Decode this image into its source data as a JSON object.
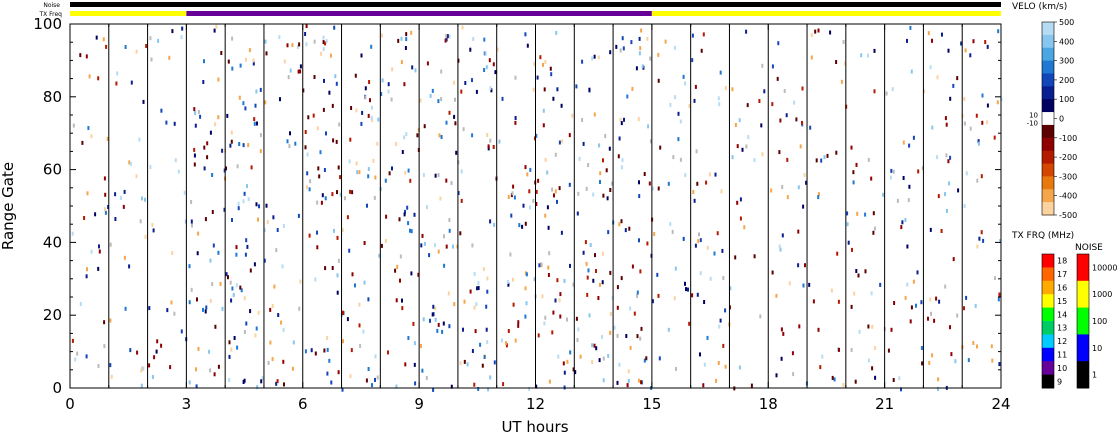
{
  "chart_data": {
    "type": "heatmap",
    "title": "",
    "xlabel": "UT hours",
    "ylabel": "Range Gate",
    "xlim": [
      0,
      24
    ],
    "ylim": [
      0,
      100
    ],
    "xticks": [
      0,
      3,
      6,
      9,
      12,
      15,
      18,
      21,
      24
    ],
    "yticks": [
      0,
      20,
      40,
      60,
      80,
      100
    ],
    "status_bars": {
      "noise_label": "Noise",
      "txfreq_label": "TX Freq",
      "noise_segments": [
        {
          "start": 0,
          "end": 24,
          "color": "#000000"
        }
      ],
      "txfreq_segments": [
        {
          "start": 0,
          "end": 3,
          "color": "#ffff00"
        },
        {
          "start": 3,
          "end": 15,
          "color": "#660099"
        },
        {
          "start": 15,
          "end": 24,
          "color": "#ffff00"
        }
      ]
    },
    "scan_boundaries_ut": [
      1,
      2,
      3,
      4,
      5,
      6,
      7,
      8,
      9,
      10,
      11,
      12,
      13,
      14,
      15,
      16,
      17,
      18,
      19,
      20,
      21,
      22,
      23
    ],
    "velocity_scale": {
      "label": "VELO (km/s)",
      "range": [
        -500,
        500
      ],
      "ticks": [
        "500",
        "400",
        "300",
        "200",
        "100",
        "0",
        "-100",
        "-200",
        "-300",
        "-400",
        "-500"
      ],
      "near_zero_labels": [
        "10",
        "-10"
      ],
      "colors": [
        "#b6dcf3",
        "#87c6ee",
        "#4aa6e3",
        "#1f78d1",
        "#1346b8",
        "#0a1f8f",
        "#000060",
        "#ffffff",
        "#5c0000",
        "#8f0000",
        "#b41a00",
        "#d24600",
        "#e8790f",
        "#f5a64a",
        "#fbd3a0"
      ]
    },
    "txfreq_scale": {
      "label": "TX FRQ (MHz)",
      "ticks": [
        "18",
        "17",
        "16",
        "15",
        "14",
        "13",
        "12",
        "11",
        "10",
        "9"
      ],
      "colors": [
        "#ff0000",
        "#ff6600",
        "#ffaa00",
        "#ffff00",
        "#00ff00",
        "#00cc66",
        "#00ccff",
        "#0000ff",
        "#660099",
        "#000000"
      ]
    },
    "noise_scale": {
      "label": "NOISE",
      "ticks": [
        "10000",
        "1000",
        "100",
        "10",
        "1"
      ],
      "colors": [
        "#ff0000",
        "#ffff00",
        "#00ff00",
        "#0000ff",
        "#000000"
      ]
    }
  }
}
